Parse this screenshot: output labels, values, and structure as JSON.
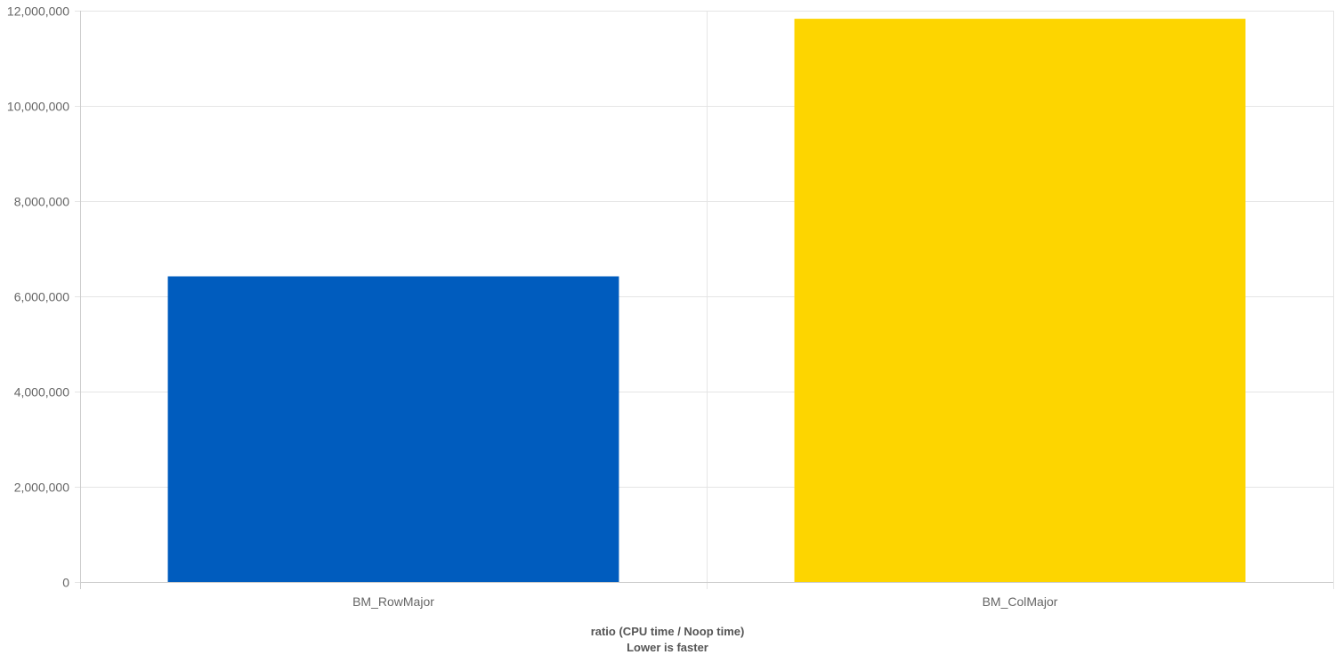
{
  "chart_data": {
    "type": "bar",
    "categories": [
      "BM_RowMajor",
      "BM_ColMajor"
    ],
    "values": [
      6420000,
      11830000
    ],
    "colors": [
      "#005cbe",
      "#fdd500"
    ],
    "xlabel": "ratio (CPU time / Noop time)",
    "xlabel_sub": "Lower is faster",
    "ylim": [
      0,
      12000000
    ],
    "yticks": [
      0,
      2000000,
      4000000,
      6000000,
      8000000,
      10000000,
      12000000
    ],
    "ytick_labels": [
      "0",
      "2,000,000",
      "4,000,000",
      "6,000,000",
      "8,000,000",
      "10,000,000",
      "12,000,000"
    ],
    "grid": true,
    "gridColor": "#e5e5e5",
    "axisColor": "#cccccc"
  }
}
